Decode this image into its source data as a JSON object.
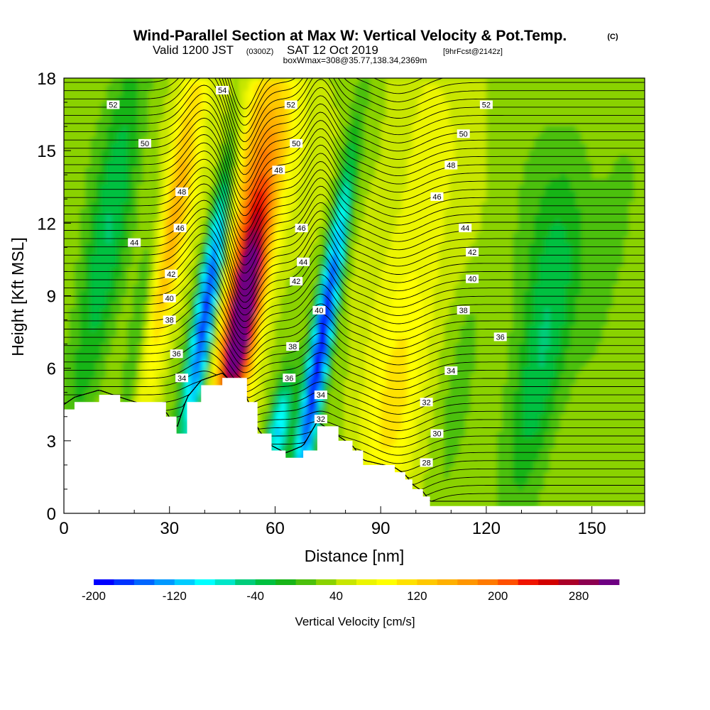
{
  "header": {
    "title": "Wind-Parallel Section at Max W: Vertical Velocity & Pot.Temp.",
    "title_mark": "(C)",
    "sub_valid": "Valid 1200 JST",
    "sub_utc": "(0300Z)",
    "sub_date": "SAT 12 Oct 2019",
    "sub_fcst": "[9hrFcst@2142z]",
    "sub_box": "boxWmax=308@35.77,138.34,2369m"
  },
  "chart_data": {
    "type": "heatmap",
    "title": "Wind-Parallel Section at Max W: Vertical Velocity & Pot.Temp.",
    "xlabel": "Distance [nm]",
    "ylabel": "Height [Kft MSL]",
    "xlim": [
      0,
      165
    ],
    "ylim": [
      0,
      18
    ],
    "x_ticks": [
      0,
      30,
      60,
      90,
      120,
      150
    ],
    "y_ticks": [
      0,
      3,
      6,
      9,
      12,
      15,
      18
    ],
    "grid": false,
    "colorbar": {
      "label": "Vertical Velocity [cm/s]",
      "tick_values": [
        -200,
        -120,
        -40,
        40,
        120,
        200,
        280
      ],
      "levels": [
        -200,
        -180,
        -160,
        -140,
        -120,
        -100,
        -80,
        -60,
        -40,
        -20,
        0,
        20,
        40,
        60,
        80,
        100,
        120,
        140,
        160,
        180,
        200,
        220,
        240,
        260,
        280,
        300
      ],
      "colors": [
        "#0000ff",
        "#0033ff",
        "#0066ff",
        "#0099ff",
        "#00ccff",
        "#00ffff",
        "#00e6c8",
        "#00cc7a",
        "#00c040",
        "#18b418",
        "#4cc00c",
        "#8ad200",
        "#c8e600",
        "#ecf500",
        "#ffff00",
        "#ffe100",
        "#ffc800",
        "#ffb000",
        "#ff9600",
        "#ff7a00",
        "#ff5000",
        "#f01400",
        "#d20000",
        "#aa0028",
        "#8c0050",
        "#6e0082"
      ]
    },
    "terrain_kft": [
      [
        0,
        4.3
      ],
      [
        3,
        4.6
      ],
      [
        10,
        4.9
      ],
      [
        16,
        4.6
      ],
      [
        29,
        4.0
      ],
      [
        32,
        3.3
      ],
      [
        35,
        4.6
      ],
      [
        39,
        5.3
      ],
      [
        45,
        5.6
      ],
      [
        52,
        4.6
      ],
      [
        55,
        3.3
      ],
      [
        59,
        2.6
      ],
      [
        63,
        2.3
      ],
      [
        68,
        2.6
      ],
      [
        72,
        3.6
      ],
      [
        78,
        3.0
      ],
      [
        82,
        2.6
      ],
      [
        85,
        2.0
      ],
      [
        94,
        1.7
      ],
      [
        97,
        1.4
      ],
      [
        99,
        1.0
      ],
      [
        102,
        0.7
      ],
      [
        104,
        0.3
      ],
      [
        165,
        0.3
      ]
    ],
    "vertical_velocity_features": [
      {
        "x": 41,
        "z": 9.0,
        "w": -200
      },
      {
        "x": 50,
        "z": 7.5,
        "w": 300
      },
      {
        "x": 73,
        "z": 6.5,
        "w": -200
      },
      {
        "x": 65,
        "z": 12.0,
        "w": 120
      },
      {
        "x": 30,
        "z": 11.0,
        "w": 140
      },
      {
        "x": 95,
        "z": 5.0,
        "w": 80
      },
      {
        "x": 133,
        "z": 6.0,
        "w": -40
      },
      {
        "x": 12,
        "z": 12.0,
        "w": -40
      }
    ],
    "theta_contour_values": [
      28,
      30,
      32,
      34,
      36,
      38,
      40,
      42,
      44,
      46,
      48,
      50,
      52,
      54
    ],
    "theta_labels": [
      {
        "text": "52",
        "x": 14,
        "z": 16.9
      },
      {
        "text": "50",
        "x": 23,
        "z": 15.3
      },
      {
        "text": "48",
        "x": 33.5,
        "z": 13.3
      },
      {
        "text": "46",
        "x": 33,
        "z": 11.8
      },
      {
        "text": "44",
        "x": 20,
        "z": 11.2
      },
      {
        "text": "42",
        "x": 30.5,
        "z": 9.9
      },
      {
        "text": "40",
        "x": 30,
        "z": 8.9
      },
      {
        "text": "38",
        "x": 30,
        "z": 8.0
      },
      {
        "text": "36",
        "x": 32,
        "z": 6.6
      },
      {
        "text": "34",
        "x": 33.5,
        "z": 5.6
      },
      {
        "text": "54",
        "x": 45,
        "z": 17.5
      },
      {
        "text": "52",
        "x": 64.5,
        "z": 16.9
      },
      {
        "text": "50",
        "x": 66,
        "z": 15.3
      },
      {
        "text": "48",
        "x": 61,
        "z": 14.2
      },
      {
        "text": "46",
        "x": 67.5,
        "z": 11.8
      },
      {
        "text": "44",
        "x": 68,
        "z": 10.4
      },
      {
        "text": "42",
        "x": 66,
        "z": 9.6
      },
      {
        "text": "40",
        "x": 72.5,
        "z": 8.4
      },
      {
        "text": "38",
        "x": 65,
        "z": 6.9
      },
      {
        "text": "36",
        "x": 64,
        "z": 5.6
      },
      {
        "text": "34",
        "x": 73,
        "z": 4.9
      },
      {
        "text": "32",
        "x": 73,
        "z": 3.9
      },
      {
        "text": "52",
        "x": 120,
        "z": 16.9
      },
      {
        "text": "50",
        "x": 113.5,
        "z": 15.7
      },
      {
        "text": "48",
        "x": 110,
        "z": 14.4
      },
      {
        "text": "46",
        "x": 106,
        "z": 13.1
      },
      {
        "text": "44",
        "x": 114,
        "z": 11.8
      },
      {
        "text": "42",
        "x": 116,
        "z": 10.8
      },
      {
        "text": "40",
        "x": 116,
        "z": 9.7
      },
      {
        "text": "38",
        "x": 113.5,
        "z": 8.4
      },
      {
        "text": "36",
        "x": 124,
        "z": 7.3
      },
      {
        "text": "34",
        "x": 110,
        "z": 5.9
      },
      {
        "text": "32",
        "x": 103,
        "z": 4.6
      },
      {
        "text": "30",
        "x": 106,
        "z": 3.3
      },
      {
        "text": "28",
        "x": 103,
        "z": 2.1
      }
    ]
  }
}
